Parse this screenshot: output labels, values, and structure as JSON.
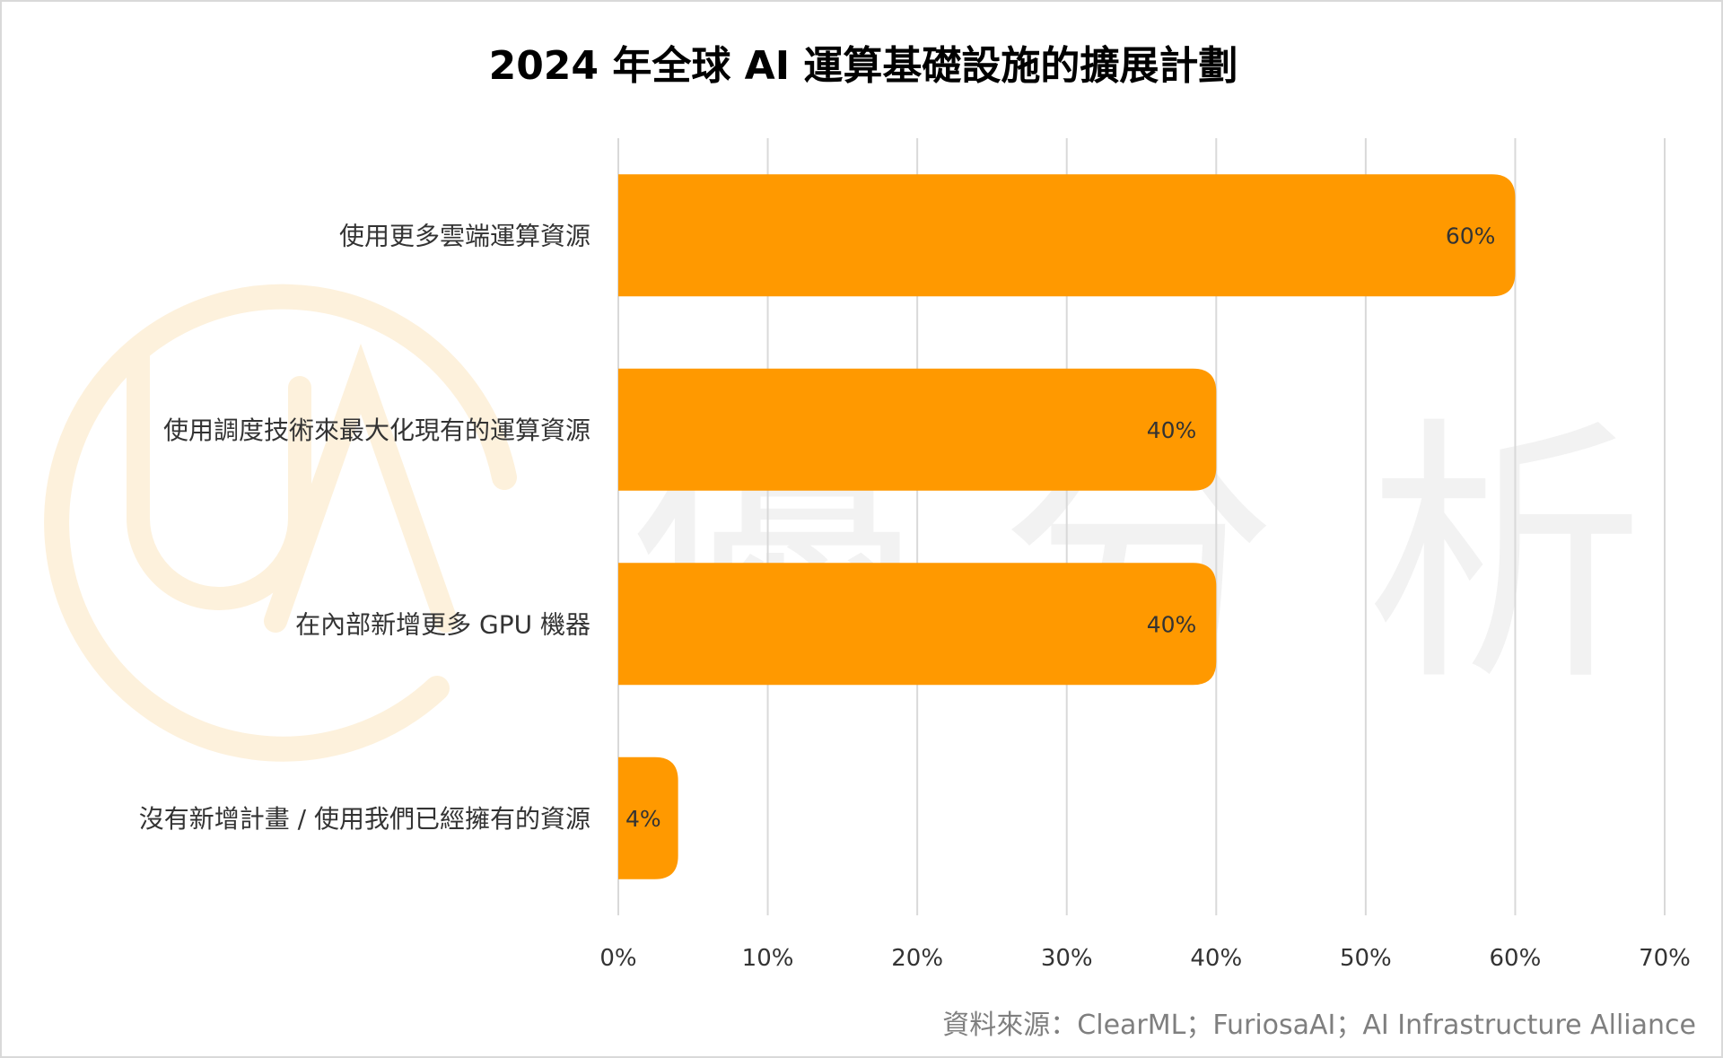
{
  "chart_data": {
    "type": "bar",
    "orientation": "horizontal",
    "title": "2024 年全球 AI 運算基礎設施的擴展計劃",
    "categories": [
      "使用更多雲端運算資源",
      "使用調度技術來最大化現有的運算資源",
      "在內部新增更多 GPU 機器",
      "沒有新增計畫 / 使用我們已經擁有的資源"
    ],
    "values": [
      60,
      40,
      40,
      4
    ],
    "value_labels": [
      "60%",
      "40%",
      "40%",
      "4%"
    ],
    "xlim": [
      0,
      70
    ],
    "x_ticks": [
      0,
      10,
      20,
      30,
      40,
      50,
      60,
      70
    ],
    "x_tick_labels": [
      "0%",
      "10%",
      "20%",
      "30%",
      "40%",
      "50%",
      "60%",
      "70%"
    ],
    "grid": "vertical",
    "legend": "none",
    "bar_color": "#ff9900",
    "source": "資料來源：ClearML；FuriosaAI；AI Infrastructure Alliance"
  },
  "watermark": {
    "text": "優 分 析",
    "logo_icon": "ua-circle-logo-icon",
    "logo_color": "#fdf1dc"
  }
}
